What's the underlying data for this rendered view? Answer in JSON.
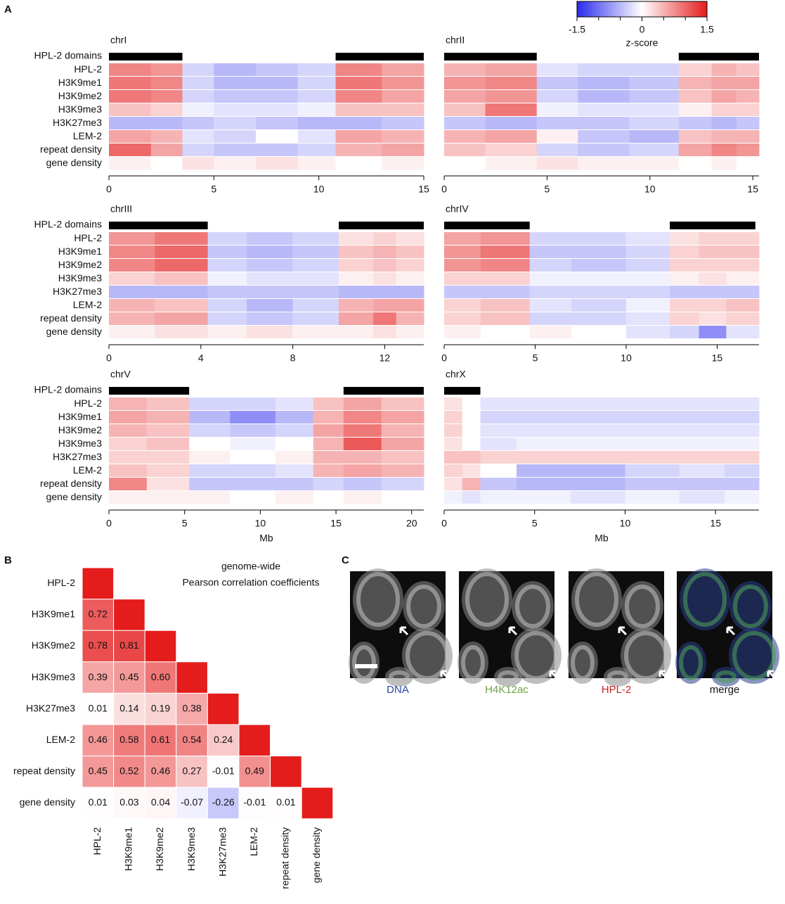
{
  "panel_labels": [
    "A",
    "B",
    "C"
  ],
  "track_labels": [
    "HPL-2",
    "H3K9me1",
    "H3K9me2",
    "H3K9me3",
    "H3K27me3",
    "LEM-2",
    "repeat density",
    "gene density"
  ],
  "domains_label": "HPL-2 domains",
  "colorscale": {
    "label": "z-score",
    "lim": [
      -1.5,
      1.5
    ],
    "ticks": [
      -1.5,
      0,
      1.5
    ],
    "minor_ticks": [
      -1,
      -0.5,
      0.5,
      1
    ],
    "colors": [
      "#2b2bee",
      "#ffffff",
      "#e41c1c"
    ]
  },
  "chart_data": [
    {
      "type": "track-heatmap",
      "title": "chrI",
      "xlim": [
        0,
        15
      ],
      "xticks": [
        0,
        5,
        10,
        15
      ],
      "domains": [
        [
          0,
          3.5
        ],
        [
          10.8,
          15
        ]
      ],
      "bins": [
        0,
        2,
        3.5,
        5,
        7,
        9,
        10.8,
        13,
        15
      ],
      "values": [
        [
          0.8,
          0.7,
          -0.3,
          -0.5,
          -0.4,
          -0.3,
          0.8,
          0.6
        ],
        [
          0.9,
          0.8,
          -0.3,
          -0.5,
          -0.5,
          -0.3,
          0.9,
          0.7
        ],
        [
          0.9,
          0.8,
          -0.3,
          -0.4,
          -0.4,
          -0.3,
          0.8,
          0.6
        ],
        [
          0.4,
          0.3,
          -0.1,
          -0.2,
          -0.2,
          -0.1,
          0.4,
          0.4
        ],
        [
          -0.5,
          -0.5,
          -0.4,
          -0.3,
          -0.4,
          -0.5,
          -0.5,
          -0.4
        ],
        [
          0.6,
          0.5,
          -0.2,
          -0.3,
          0,
          -0.2,
          0.6,
          0.5
        ],
        [
          1,
          0.6,
          -0.3,
          -0.4,
          -0.4,
          -0.3,
          0.5,
          0.6
        ],
        [
          0.1,
          0,
          0.2,
          0.1,
          0.2,
          0.1,
          0,
          0.1
        ]
      ]
    },
    {
      "type": "track-heatmap",
      "title": "chrII",
      "xlim": [
        0,
        15.3
      ],
      "xticks": [
        0,
        5,
        10,
        15
      ],
      "domains": [
        [
          0,
          4.5
        ],
        [
          11.4,
          15.3
        ]
      ],
      "bins": [
        0,
        2,
        4.5,
        6.5,
        9,
        11.4,
        13,
        14.2,
        15.3
      ],
      "values": [
        [
          0.5,
          0.6,
          -0.2,
          -0.3,
          -0.3,
          0.3,
          0.5,
          0.4
        ],
        [
          0.7,
          0.8,
          -0.4,
          -0.5,
          -0.4,
          0.5,
          0.6,
          0.6
        ],
        [
          0.6,
          0.7,
          -0.3,
          -0.5,
          -0.4,
          0.4,
          0.6,
          0.5
        ],
        [
          0.4,
          0.9,
          -0.1,
          -0.2,
          -0.2,
          0.1,
          0.3,
          0.3
        ],
        [
          -0.4,
          -0.5,
          -0.4,
          -0.4,
          -0.3,
          -0.4,
          -0.5,
          -0.4
        ],
        [
          0.5,
          0.6,
          0.1,
          -0.4,
          -0.5,
          0.4,
          0.5,
          0.5
        ],
        [
          0.4,
          0.3,
          -0.3,
          -0.4,
          -0.3,
          0.6,
          0.8,
          0.7
        ],
        [
          0,
          0.1,
          0.2,
          0.1,
          0.1,
          0,
          0.1,
          0
        ]
      ]
    },
    {
      "type": "track-heatmap",
      "title": "chrIII",
      "xlim": [
        0,
        13.7
      ],
      "xticks": [
        0,
        4,
        8,
        12
      ],
      "domains": [
        [
          0,
          4.3
        ],
        [
          10,
          13.7
        ]
      ],
      "bins": [
        0,
        2,
        4.3,
        6,
        8,
        10,
        11.5,
        12.5,
        13.7
      ],
      "values": [
        [
          0.7,
          0.9,
          -0.3,
          -0.4,
          -0.3,
          0.2,
          0.3,
          0.2
        ],
        [
          0.8,
          1,
          -0.4,
          -0.5,
          -0.4,
          0.4,
          0.5,
          0.4
        ],
        [
          0.8,
          1,
          -0.3,
          -0.4,
          -0.3,
          0.3,
          0.4,
          0.3
        ],
        [
          0.3,
          0.4,
          -0.1,
          -0.2,
          -0.2,
          0.1,
          0.2,
          0.1
        ],
        [
          -0.5,
          -0.5,
          -0.4,
          -0.4,
          -0.4,
          -0.5,
          -0.5,
          -0.5
        ],
        [
          0.5,
          0.4,
          -0.3,
          -0.5,
          -0.3,
          0.5,
          0.6,
          0.6
        ],
        [
          0.5,
          0.6,
          -0.3,
          -0.4,
          -0.3,
          0.6,
          0.9,
          0.5
        ],
        [
          0.1,
          0.2,
          0.1,
          0.2,
          0.1,
          0.1,
          0.2,
          0.1
        ]
      ]
    },
    {
      "type": "track-heatmap",
      "title": "chrIV",
      "xlim": [
        0,
        17.3
      ],
      "xticks": [
        0,
        5,
        10,
        15
      ],
      "domains": [
        [
          0,
          4.7
        ],
        [
          12.4,
          17.1
        ]
      ],
      "bins": [
        0,
        2,
        4.7,
        7,
        10,
        12.4,
        14,
        15.5,
        17.3
      ],
      "values": [
        [
          0.6,
          0.7,
          -0.3,
          -0.3,
          -0.2,
          0.2,
          0.3,
          0.3
        ],
        [
          0.7,
          0.9,
          -0.4,
          -0.4,
          -0.3,
          0.3,
          0.4,
          0.4
        ],
        [
          0.7,
          0.8,
          -0.3,
          -0.4,
          -0.3,
          0.3,
          0.3,
          0.3
        ],
        [
          0.3,
          0.3,
          -0.1,
          -0.1,
          -0.1,
          0.1,
          0.2,
          0.1
        ],
        [
          -0.4,
          -0.4,
          -0.3,
          -0.3,
          -0.3,
          -0.4,
          -0.4,
          -0.4
        ],
        [
          0.3,
          0.4,
          -0.2,
          -0.3,
          -0.1,
          0.3,
          0.3,
          0.4
        ],
        [
          0.3,
          0.4,
          -0.3,
          -0.3,
          -0.2,
          0.3,
          0.2,
          0.3
        ],
        [
          0.1,
          0,
          0.1,
          0,
          -0.2,
          -0.3,
          -0.8,
          -0.2
        ]
      ]
    },
    {
      "type": "track-heatmap",
      "title": "chrV",
      "xlabel": "Mb",
      "xlim": [
        0,
        20.8
      ],
      "xticks": [
        0,
        5,
        10,
        15,
        20
      ],
      "domains": [
        [
          0,
          5.3
        ],
        [
          15.5,
          20.8
        ]
      ],
      "bins": [
        0,
        2.5,
        5.3,
        8,
        11,
        13.5,
        15.5,
        18,
        20.8
      ],
      "values": [
        [
          0.5,
          0.4,
          -0.3,
          -0.3,
          -0.2,
          0.4,
          0.6,
          0.4
        ],
        [
          0.6,
          0.5,
          -0.5,
          -0.8,
          -0.5,
          0.5,
          0.8,
          0.6
        ],
        [
          0.5,
          0.4,
          -0.3,
          -0.4,
          -0.3,
          0.6,
          0.9,
          0.5
        ],
        [
          0.3,
          0.4,
          0,
          -0.1,
          0,
          0.5,
          1.1,
          0.6
        ],
        [
          0.3,
          0.3,
          0.1,
          0,
          0.1,
          0.5,
          0.5,
          0.4
        ],
        [
          0.4,
          0.3,
          -0.3,
          -0.3,
          -0.2,
          0.5,
          0.6,
          0.5
        ],
        [
          0.8,
          0.2,
          -0.4,
          -0.4,
          -0.4,
          -0.3,
          -0.4,
          -0.3
        ],
        [
          0.1,
          0.1,
          0.1,
          0,
          0.1,
          0,
          0.1,
          0
        ]
      ]
    },
    {
      "type": "track-heatmap",
      "title": "chrX",
      "xlabel": "Mb",
      "xlim": [
        0,
        17.4
      ],
      "xticks": [
        0,
        5,
        10,
        15
      ],
      "domains": [
        [
          0,
          2
        ]
      ],
      "bins": [
        0,
        1,
        2,
        4,
        7,
        10,
        13,
        15.5,
        17.4
      ],
      "values": [
        [
          0.2,
          0,
          -0.2,
          -0.2,
          -0.2,
          -0.2,
          -0.2,
          -0.2
        ],
        [
          0.3,
          0,
          -0.3,
          -0.3,
          -0.3,
          -0.3,
          -0.3,
          -0.3
        ],
        [
          0.3,
          0,
          -0.2,
          -0.2,
          -0.2,
          -0.2,
          -0.2,
          -0.2
        ],
        [
          0.2,
          0,
          -0.2,
          -0.1,
          -0.1,
          -0.1,
          -0.1,
          -0.1
        ],
        [
          0.4,
          0.4,
          0.3,
          0.3,
          0.3,
          0.3,
          0.3,
          0.3
        ],
        [
          0.3,
          0.2,
          0,
          -0.5,
          -0.5,
          -0.3,
          -0.2,
          -0.3
        ],
        [
          0.2,
          0.5,
          -0.4,
          -0.5,
          -0.5,
          -0.4,
          -0.4,
          -0.4
        ],
        [
          -0.1,
          -0.2,
          -0.1,
          -0.1,
          -0.2,
          -0.1,
          -0.2,
          -0.1
        ]
      ]
    },
    {
      "type": "heatmap",
      "title": "genome-wide",
      "subtitle": "Pearson correlation coefficients",
      "zlim": [
        -1,
        1
      ],
      "categories": [
        "HPL-2",
        "H3K9me1",
        "H3K9me2",
        "H3K9me3",
        "H3K27me3",
        "LEM-2",
        "repeat density",
        "gene density"
      ],
      "values": [
        [
          1
        ],
        [
          0.72,
          1
        ],
        [
          0.78,
          0.81,
          1
        ],
        [
          0.39,
          0.45,
          0.6,
          1
        ],
        [
          0.01,
          0.14,
          0.19,
          0.38,
          1
        ],
        [
          0.46,
          0.58,
          0.61,
          0.54,
          0.24,
          1
        ],
        [
          0.45,
          0.52,
          0.46,
          0.27,
          -0.01,
          0.49,
          1
        ],
        [
          0.01,
          0.03,
          0.04,
          -0.07,
          -0.26,
          -0.01,
          0.01,
          1
        ]
      ],
      "value_labels": [
        [
          null
        ],
        [
          "0.72",
          null
        ],
        [
          "0.78",
          "0.81",
          null
        ],
        [
          "0.39",
          "0.45",
          "0.60",
          null
        ],
        [
          "0.01",
          "0.14",
          "0.19",
          "0.38",
          null
        ],
        [
          "0.46",
          "0.58",
          "0.61",
          "0.54",
          "0.24",
          null
        ],
        [
          "0.45",
          "0.52",
          "0.46",
          "0.27",
          "-0.01",
          "0.49",
          null
        ],
        [
          "0.01",
          "0.03",
          "0.04",
          "-0.07",
          "-0.26",
          "-0.01",
          "0.01",
          null
        ]
      ]
    }
  ],
  "micrographs": [
    {
      "caption": "DNA",
      "color": "#2a44a8"
    },
    {
      "caption": "H4K12ac",
      "color": "#6ea346"
    },
    {
      "caption": "HPL-2",
      "color": "#cc2222"
    },
    {
      "caption": "merge",
      "color": "#111111"
    }
  ]
}
